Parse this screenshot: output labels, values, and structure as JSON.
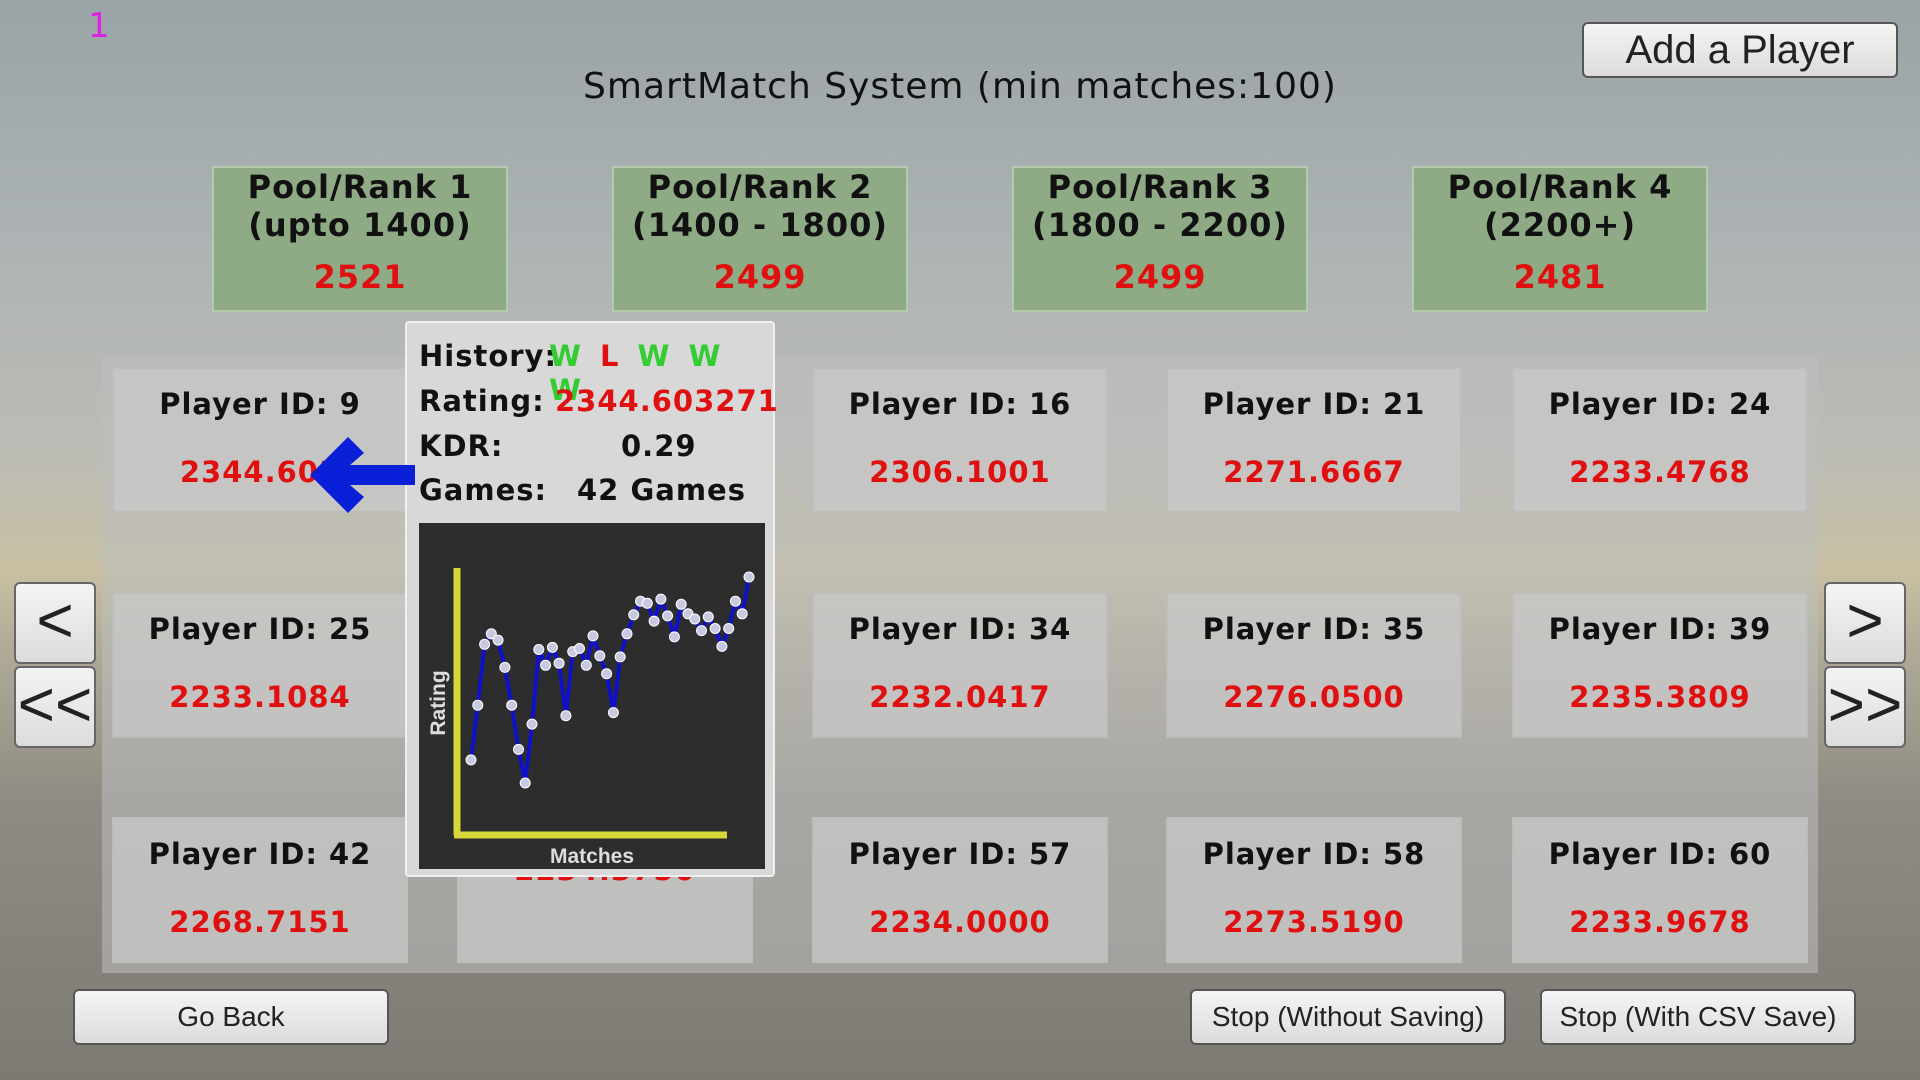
{
  "frame_counter": "1",
  "title": "SmartMatch System (min matches:100)",
  "buttons": {
    "add_player": "Add a Player",
    "go_back": "Go Back",
    "stop_without_saving": "Stop (Without Saving)",
    "stop_with_csv": "Stop (With CSV Save)",
    "prev": "<",
    "first": "<<",
    "next": ">",
    "last": ">>"
  },
  "pools": [
    {
      "name": "Pool/Rank 1",
      "range": "(upto 1400)",
      "count": "2521"
    },
    {
      "name": "Pool/Rank 2",
      "range": "(1400 - 1800)",
      "count": "2499"
    },
    {
      "name": "Pool/Rank 3",
      "range": "(1800 - 2200)",
      "count": "2499"
    },
    {
      "name": "Pool/Rank 4",
      "range": "(2200+)",
      "count": "2481"
    }
  ],
  "players": [
    {
      "label": "Player ID: 9",
      "rating": "2344.603"
    },
    {
      "label": "Player ID: 16",
      "rating": "2306.1001"
    },
    {
      "label": "Player ID: 21",
      "rating": "2271.6667"
    },
    {
      "label": "Player ID: 24",
      "rating": "2233.4768"
    },
    {
      "label": "Player ID: 25",
      "rating": "2233.1084"
    },
    {
      "label": "Player ID: 34",
      "rating": "2232.0417"
    },
    {
      "label": "Player ID: 35",
      "rating": "2276.0500"
    },
    {
      "label": "Player ID: 39",
      "rating": "2235.3809"
    },
    {
      "label": "Player ID: 42",
      "rating": "2268.7151"
    },
    {
      "label": "",
      "rating": "2234.3750"
    },
    {
      "label": "Player ID: 57",
      "rating": "2234.0000"
    },
    {
      "label": "Player ID: 58",
      "rating": "2273.5190"
    },
    {
      "label": "Player ID: 60",
      "rating": "2233.9678"
    }
  ],
  "popup": {
    "history_label": "History:",
    "history": [
      "W",
      "L",
      "W",
      "W",
      "W"
    ],
    "rating_label": "Rating:",
    "rating_value": "2344.603271",
    "kdr_label": "KDR:",
    "kdr_value": "0.29",
    "games_label": "Games:",
    "games_value": "42 Games"
  },
  "colors": {
    "win": "#33cc33",
    "loss": "#e01010",
    "rating_text": "#e01010",
    "pool_bg": "#8fab86",
    "arrow": "#0a1fd8",
    "chart_line": "#1010c8",
    "chart_axis": "#d8d83a",
    "chart_bg": "#2d2d2d"
  },
  "icons": {
    "pointer": "left-arrow-icon"
  },
  "chart_data": {
    "type": "line",
    "title": "",
    "xlabel": "Matches",
    "ylabel": "Rating",
    "x": [
      1,
      2,
      3,
      4,
      5,
      6,
      7,
      8,
      9,
      10,
      11,
      12,
      13,
      14,
      15,
      16,
      17,
      18,
      19,
      20,
      21,
      22,
      23,
      24,
      25,
      26,
      27,
      28,
      29,
      30,
      31,
      32,
      33,
      34,
      35,
      36,
      37,
      38,
      39,
      40,
      41,
      42
    ],
    "values": [
      2180,
      2232,
      2290,
      2300,
      2294,
      2268,
      2232,
      2190,
      2158,
      2214,
      2285,
      2270,
      2287,
      2272,
      2222,
      2283,
      2286,
      2270,
      2298,
      2279,
      2262,
      2225,
      2278,
      2300,
      2318,
      2331,
      2329,
      2312,
      2333,
      2317,
      2297,
      2328,
      2319,
      2314,
      2303,
      2316,
      2305,
      2288,
      2305,
      2331,
      2319,
      2354
    ],
    "grid": false
  }
}
